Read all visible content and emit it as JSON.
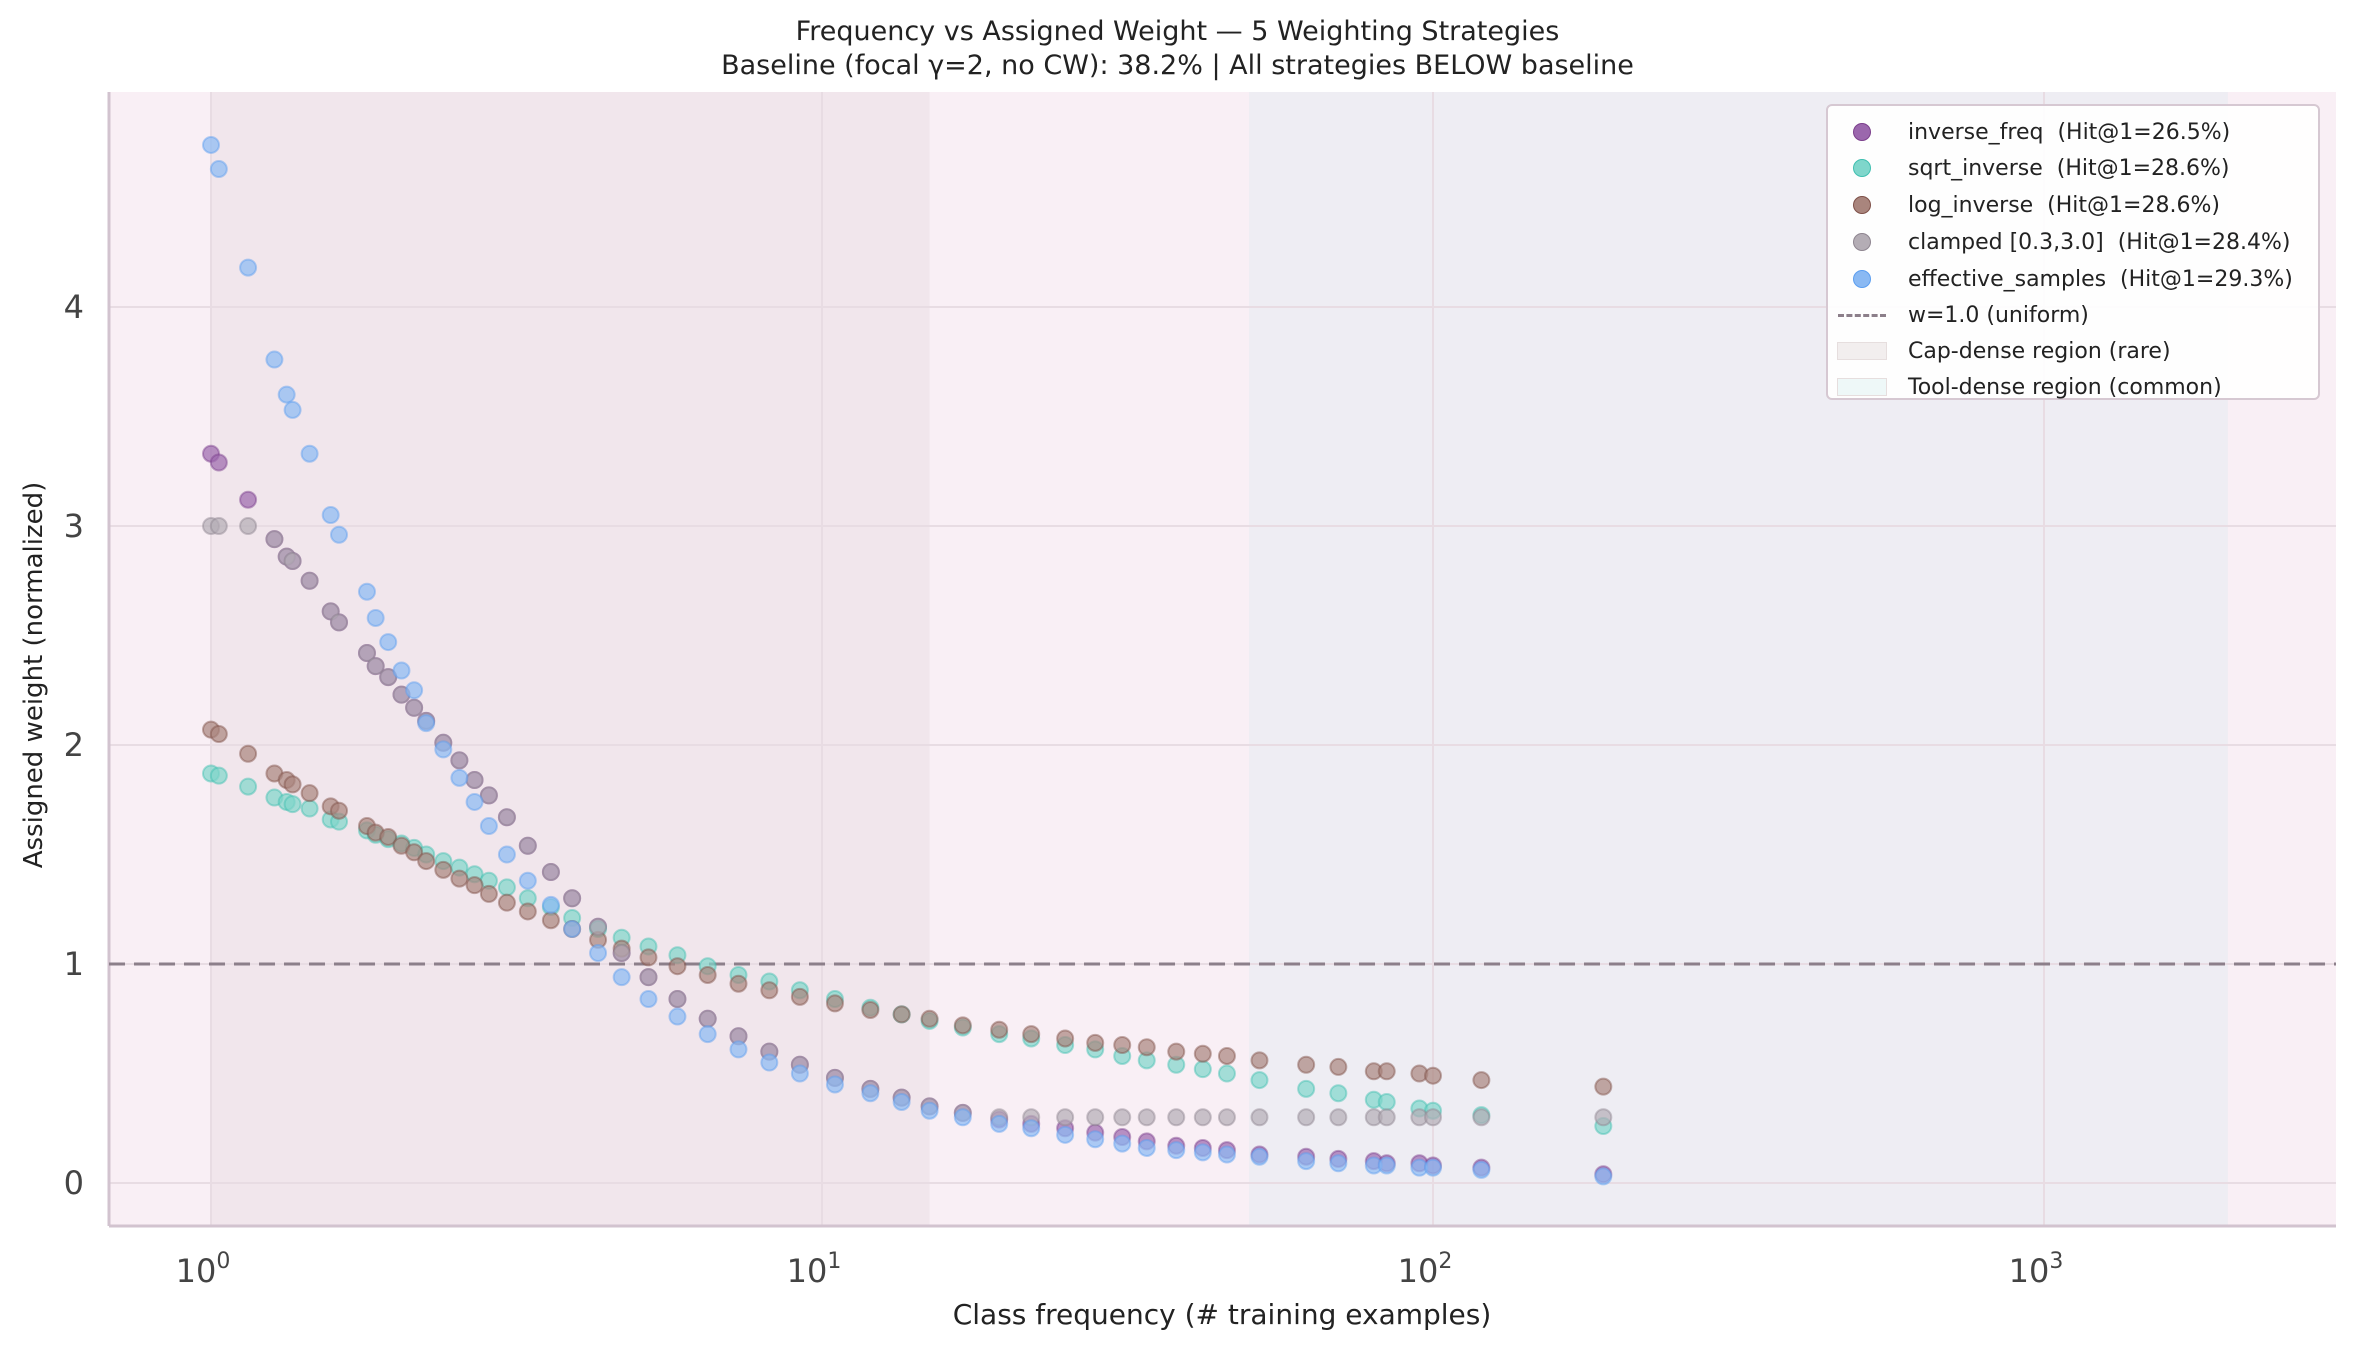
{
  "chart_data": {
    "type": "scatter",
    "title": "Frequency vs Assigned Weight — 5 Weighting Strategies",
    "subtitle": "Baseline (focal γ=2, no CW): 38.2%  |  All strategies BELOW baseline",
    "xlabel": "Class frequency (# training examples)",
    "ylabel": "Assigned weight (normalized)",
    "xscale": "log",
    "xlim": [
      0.66,
      3000
    ],
    "ylim": [
      -0.2,
      5.0
    ],
    "x_ticks": [
      {
        "value": 1,
        "label": "10^0"
      },
      {
        "value": 10,
        "label": "10^1"
      },
      {
        "value": 100,
        "label": "10^2"
      },
      {
        "value": 1000,
        "label": "10^3"
      }
    ],
    "y_ticks": [
      0,
      1,
      2,
      3,
      4
    ],
    "grid": true,
    "legend_position": "upper right",
    "reference_line": {
      "y": 1.0,
      "label": "w=1.0 (uniform)",
      "style": "dashed",
      "color": "#8c7f8a"
    },
    "regions": [
      {
        "label": "Cap-dense region (rare)",
        "x_from": 1,
        "x_to": 15,
        "color": "#e8dde3"
      },
      {
        "label": "Tool-dense region (common)",
        "x_from": 50,
        "x_to": 2000,
        "color": "#e6e9ee"
      }
    ],
    "x": [
      1,
      1.03,
      1.15,
      1.27,
      1.33,
      1.36,
      1.45,
      1.57,
      1.62,
      1.8,
      1.86,
      1.95,
      2.05,
      2.15,
      2.25,
      2.4,
      2.55,
      2.7,
      2.85,
      3.05,
      3.3,
      3.6,
      3.9,
      4.3,
      4.7,
      5.2,
      5.8,
      6.5,
      7.3,
      8.2,
      9.2,
      10.5,
      12,
      13.5,
      15,
      17,
      19.5,
      22,
      25,
      28,
      31,
      34,
      38,
      42,
      46,
      52,
      62,
      70,
      80,
      84,
      95,
      100,
      120,
      190
    ],
    "series": [
      {
        "name": "inverse_freq",
        "hit_at_1": "26.5%",
        "color": "#7b3f8c",
        "values": [
          3.33,
          3.29,
          3.12,
          2.94,
          2.86,
          2.84,
          2.75,
          2.61,
          2.56,
          2.42,
          2.36,
          2.31,
          2.23,
          2.17,
          2.11,
          2.01,
          1.93,
          1.84,
          1.77,
          1.67,
          1.54,
          1.42,
          1.3,
          1.17,
          1.05,
          0.94,
          0.84,
          0.75,
          0.67,
          0.6,
          0.54,
          0.48,
          0.43,
          0.39,
          0.35,
          0.32,
          0.29,
          0.27,
          0.25,
          0.23,
          0.21,
          0.19,
          0.17,
          0.16,
          0.15,
          0.13,
          0.12,
          0.11,
          0.1,
          0.09,
          0.09,
          0.08,
          0.07,
          0.04
        ]
      },
      {
        "name": "sqrt_inverse",
        "hit_at_1": "28.6%",
        "color": "#3fbfb0",
        "values": [
          1.87,
          1.86,
          1.81,
          1.76,
          1.74,
          1.73,
          1.71,
          1.66,
          1.65,
          1.61,
          1.59,
          1.57,
          1.55,
          1.53,
          1.5,
          1.47,
          1.44,
          1.41,
          1.38,
          1.35,
          1.3,
          1.26,
          1.21,
          1.16,
          1.12,
          1.08,
          1.04,
          0.99,
          0.95,
          0.92,
          0.88,
          0.84,
          0.8,
          0.77,
          0.74,
          0.71,
          0.68,
          0.66,
          0.63,
          0.61,
          0.58,
          0.56,
          0.54,
          0.52,
          0.5,
          0.47,
          0.43,
          0.41,
          0.38,
          0.37,
          0.34,
          0.33,
          0.31,
          0.26
        ]
      },
      {
        "name": "log_inverse",
        "hit_at_1": "28.6%",
        "color": "#7e5048",
        "values": [
          2.07,
          2.05,
          1.96,
          1.87,
          1.84,
          1.82,
          1.78,
          1.72,
          1.7,
          1.63,
          1.6,
          1.58,
          1.54,
          1.51,
          1.47,
          1.43,
          1.39,
          1.36,
          1.32,
          1.28,
          1.24,
          1.2,
          1.16,
          1.11,
          1.07,
          1.03,
          0.99,
          0.95,
          0.91,
          0.88,
          0.85,
          0.82,
          0.79,
          0.77,
          0.75,
          0.72,
          0.7,
          0.68,
          0.66,
          0.64,
          0.63,
          0.62,
          0.6,
          0.59,
          0.58,
          0.56,
          0.54,
          0.53,
          0.51,
          0.51,
          0.5,
          0.49,
          0.47,
          0.44
        ]
      },
      {
        "name": "clamped [0.3,3.0]",
        "hit_at_1": "28.4%",
        "color": "#8e8590",
        "values": [
          3.0,
          3.0,
          3.0,
          2.94,
          2.86,
          2.84,
          2.75,
          2.61,
          2.56,
          2.42,
          2.36,
          2.31,
          2.23,
          2.17,
          2.11,
          2.01,
          1.93,
          1.84,
          1.77,
          1.67,
          1.54,
          1.42,
          1.3,
          1.17,
          1.05,
          0.94,
          0.84,
          0.75,
          0.67,
          0.6,
          0.54,
          0.48,
          0.43,
          0.39,
          0.35,
          0.32,
          0.3,
          0.3,
          0.3,
          0.3,
          0.3,
          0.3,
          0.3,
          0.3,
          0.3,
          0.3,
          0.3,
          0.3,
          0.3,
          0.3,
          0.3,
          0.3,
          0.3,
          0.3
        ]
      },
      {
        "name": "effective_samples",
        "hit_at_1": "29.3%",
        "color": "#5b9ef0",
        "values": [
          4.74,
          4.63,
          4.18,
          3.76,
          3.6,
          3.53,
          3.33,
          3.05,
          2.96,
          2.7,
          2.58,
          2.47,
          2.34,
          2.25,
          2.1,
          1.98,
          1.85,
          1.74,
          1.63,
          1.5,
          1.38,
          1.27,
          1.16,
          1.05,
          0.94,
          0.84,
          0.76,
          0.68,
          0.61,
          0.55,
          0.5,
          0.45,
          0.41,
          0.37,
          0.33,
          0.3,
          0.27,
          0.25,
          0.22,
          0.2,
          0.18,
          0.16,
          0.15,
          0.14,
          0.13,
          0.12,
          0.1,
          0.09,
          0.08,
          0.08,
          0.07,
          0.07,
          0.06,
          0.03
        ]
      }
    ]
  },
  "legend": {
    "items": [
      {
        "label": "inverse_freq  (Hit@1=26.5%)",
        "kind": "dot",
        "color": "#9b67ad"
      },
      {
        "label": "sqrt_inverse  (Hit@1=28.6%)",
        "kind": "dot",
        "color": "#7fd6cb"
      },
      {
        "label": "log_inverse  (Hit@1=28.6%)",
        "kind": "dot",
        "color": "#a9857d"
      },
      {
        "label": "clamped [0.3,3.0]  (Hit@1=28.4%)",
        "kind": "dot",
        "color": "#b4adb5"
      },
      {
        "label": "effective_samples  (Hit@1=29.3%)",
        "kind": "dot",
        "color": "#8ab9f3"
      },
      {
        "label": "w=1.0 (uniform)",
        "kind": "dash",
        "color": "#8c7f8a"
      },
      {
        "label": "Cap-dense region (rare)",
        "kind": "patch",
        "color": "#f2eeee"
      },
      {
        "label": "Tool-dense region (common)",
        "kind": "patch",
        "color": "#eef8f8"
      }
    ]
  },
  "colors": {
    "plot_background": "#f9eff5",
    "cap_region": "#f1e6ec",
    "tool_region": "#eeedf3",
    "grid": "#e8dce3",
    "axis_spine": "#d2c3cf",
    "tick_text": "#444444"
  }
}
